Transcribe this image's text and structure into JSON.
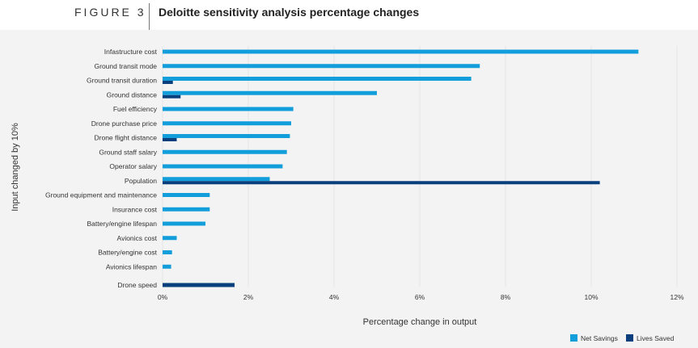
{
  "figure": {
    "label": "FIGURE 3",
    "title": "Deloitte sensitivity analysis percentage changes"
  },
  "colors": {
    "net_savings": "#129ddb",
    "lives_saved": "#0a3f7d",
    "panel": "#f3f3f3",
    "gridline": "#dddddd"
  },
  "chart_data": {
    "type": "bar",
    "orientation": "horizontal",
    "title": "Deloitte sensitivity analysis percentage changes",
    "xlabel": "Percentage change in output",
    "ylabel": "Input changed by 10%",
    "xlim": [
      0,
      12
    ],
    "xticks": [
      0,
      2,
      4,
      6,
      8,
      10,
      12
    ],
    "tick_suffix": "%",
    "legend_position": "bottom-right",
    "categories": [
      "Infastructure cost",
      "Ground transit mode",
      "Ground transit duration",
      "Ground distance",
      "Fuel efficiency",
      "Drone purchase price",
      "Drone flight distance",
      "Ground staff salary",
      "Operator salary",
      "Population",
      "Ground equipment and maintenance",
      "Insurance cost",
      "Battery/engine lifespan",
      "Avionics cost",
      "Battery/engine cost",
      "Avionics lifespan",
      "Drone speed"
    ],
    "series": [
      {
        "name": "Net Savings",
        "values": [
          11.1,
          7.4,
          7.2,
          5.0,
          3.05,
          3.0,
          2.97,
          2.9,
          2.8,
          2.5,
          1.1,
          1.1,
          1.0,
          0.33,
          0.22,
          0.2,
          null
        ]
      },
      {
        "name": "Lives Saved",
        "values": [
          null,
          null,
          0.24,
          0.42,
          null,
          null,
          0.33,
          null,
          null,
          10.2,
          null,
          null,
          null,
          null,
          null,
          null,
          1.68
        ]
      }
    ]
  }
}
